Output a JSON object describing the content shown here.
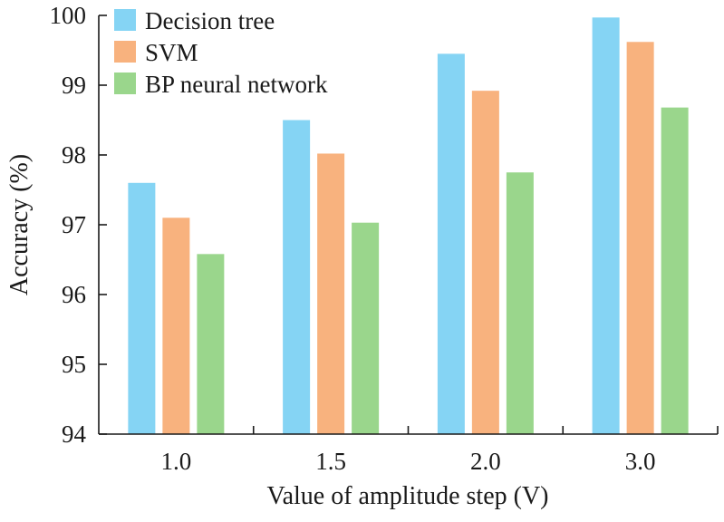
{
  "chart_data": {
    "type": "bar",
    "categories": [
      "1.0",
      "1.5",
      "2.0",
      "3.0"
    ],
    "series": [
      {
        "name": "Decision tree",
        "color": "#85d4f4",
        "values": [
          97.6,
          98.5,
          99.45,
          99.97
        ]
      },
      {
        "name": "SVM",
        "color": "#f8b27e",
        "values": [
          97.1,
          98.02,
          98.92,
          99.62
        ]
      },
      {
        "name": "BP neural network",
        "color": "#9ad68c",
        "values": [
          96.58,
          97.03,
          97.75,
          98.68
        ]
      }
    ],
    "xlabel": "Value of amplitude step (V)",
    "ylabel": "Accuracy (%)",
    "ylim": [
      94,
      100
    ],
    "yticks": [
      "94",
      "95",
      "96",
      "97",
      "98",
      "99",
      "100"
    ],
    "legend_position": "top-left",
    "grid": false
  }
}
